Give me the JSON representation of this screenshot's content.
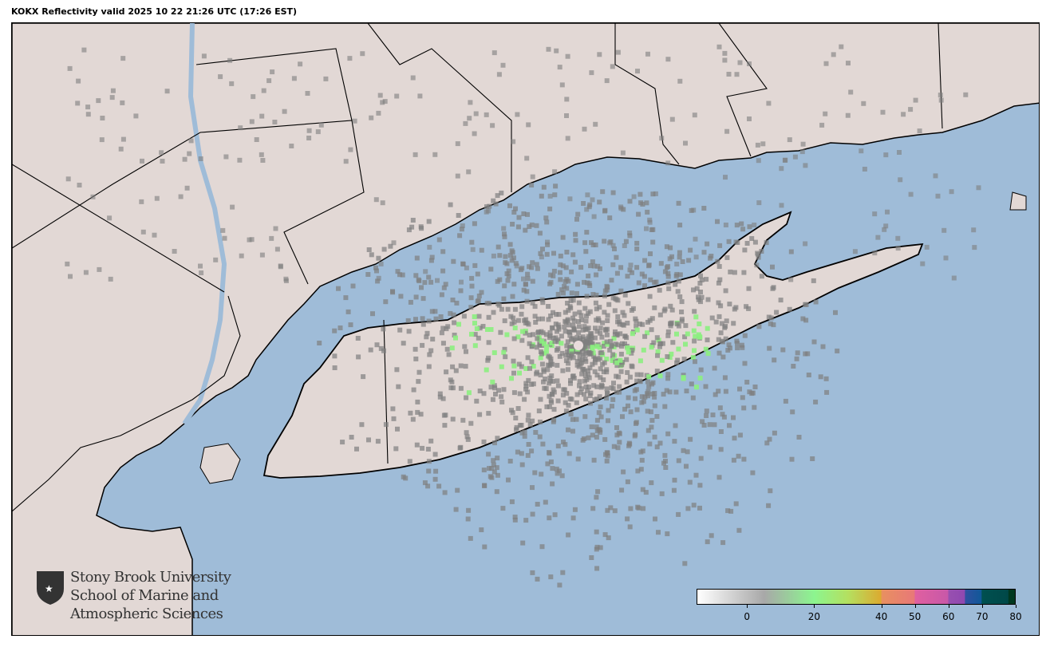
{
  "title": "KOKX Reflectivity valid 2025 10 22 21:26 UTC (17:26 EST)",
  "colors": {
    "water": "#9fbcd8",
    "land": "#e2d8d5",
    "border": "#000000",
    "radar_gray": "#7f7f7f",
    "radar_green": "#8cf07f"
  },
  "logo": {
    "line1": "Stony Brook University",
    "line2": "School of Marine and",
    "line3": "Atmospheric Sciences",
    "icon": "shield-star-icon"
  },
  "colorbar": {
    "label_unit": "",
    "range": [
      -15,
      80
    ],
    "ticks": [
      "0",
      "20",
      "40",
      "50",
      "60",
      "70",
      "80"
    ],
    "tick_values": [
      0,
      20,
      40,
      50,
      60,
      70,
      80
    ],
    "stops": [
      {
        "v": -15,
        "c": "#ffffff"
      },
      {
        "v": 5,
        "c": "#a8a8a8"
      },
      {
        "v": 20,
        "c": "#8cf58f"
      },
      {
        "v": 30,
        "c": "#b4e060"
      },
      {
        "v": 40,
        "c": "#dcaa30"
      },
      {
        "v": 40.1,
        "c": "#e89060"
      },
      {
        "v": 50,
        "c": "#e87878"
      },
      {
        "v": 50.1,
        "c": "#e060a0"
      },
      {
        "v": 60,
        "c": "#c858a8"
      },
      {
        "v": 60.1,
        "c": "#9850b0"
      },
      {
        "v": 65,
        "c": "#9048b0"
      },
      {
        "v": 65.1,
        "c": "#3050a0"
      },
      {
        "v": 70,
        "c": "#105898"
      },
      {
        "v": 70.1,
        "c": "#005050"
      },
      {
        "v": 78,
        "c": "#004848"
      },
      {
        "v": 78.1,
        "c": "#003820"
      },
      {
        "v": 80,
        "c": "#003820"
      }
    ]
  },
  "radar": {
    "site": "KOKX"
  }
}
